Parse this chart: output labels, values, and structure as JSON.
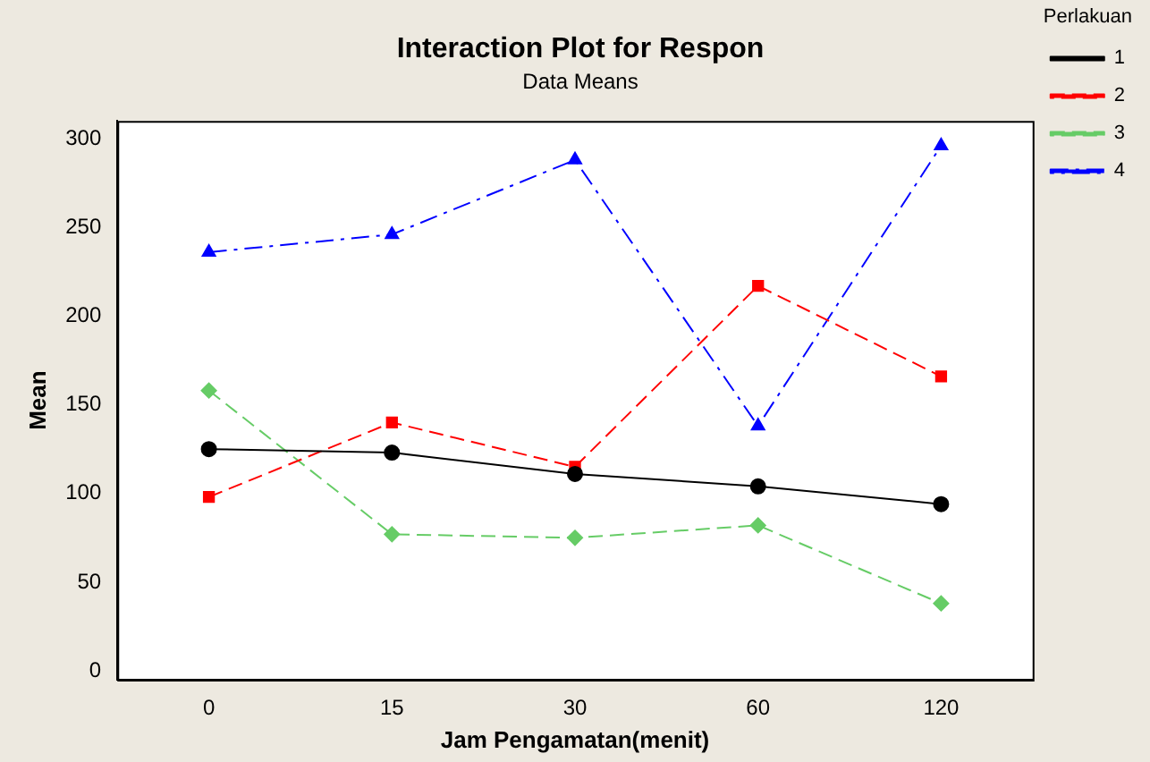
{
  "chart_data": {
    "type": "line",
    "title": "Interaction Plot for Respon",
    "subtitle": "Data Means",
    "xlabel": "Jam Pengamatan(menit)",
    "ylabel": "Mean",
    "legend_title": "Perlakuan",
    "categories": [
      "0",
      "15",
      "30",
      "60",
      "120"
    ],
    "series": [
      {
        "name": "1",
        "color": "#000000",
        "values": [
          125,
          123,
          111,
          104,
          94
        ],
        "marker": "circle",
        "line_style": "solid"
      },
      {
        "name": "2",
        "color": "#ff0000",
        "values": [
          98,
          140,
          115,
          217,
          166
        ],
        "marker": "square",
        "line_style": "dashed"
      },
      {
        "name": "3",
        "color": "#66cc66",
        "values": [
          158,
          77,
          75,
          82,
          38
        ],
        "marker": "diamond",
        "line_style": "dashed"
      },
      {
        "name": "4",
        "color": "#0000ff",
        "values": [
          236,
          246,
          288,
          138,
          296
        ],
        "marker": "triangle",
        "line_style": "dashdot"
      }
    ],
    "ylim": [
      -5,
      310
    ],
    "yticks": [
      0,
      50,
      100,
      150,
      200,
      250,
      300
    ],
    "grid": false,
    "legend": "top right"
  }
}
